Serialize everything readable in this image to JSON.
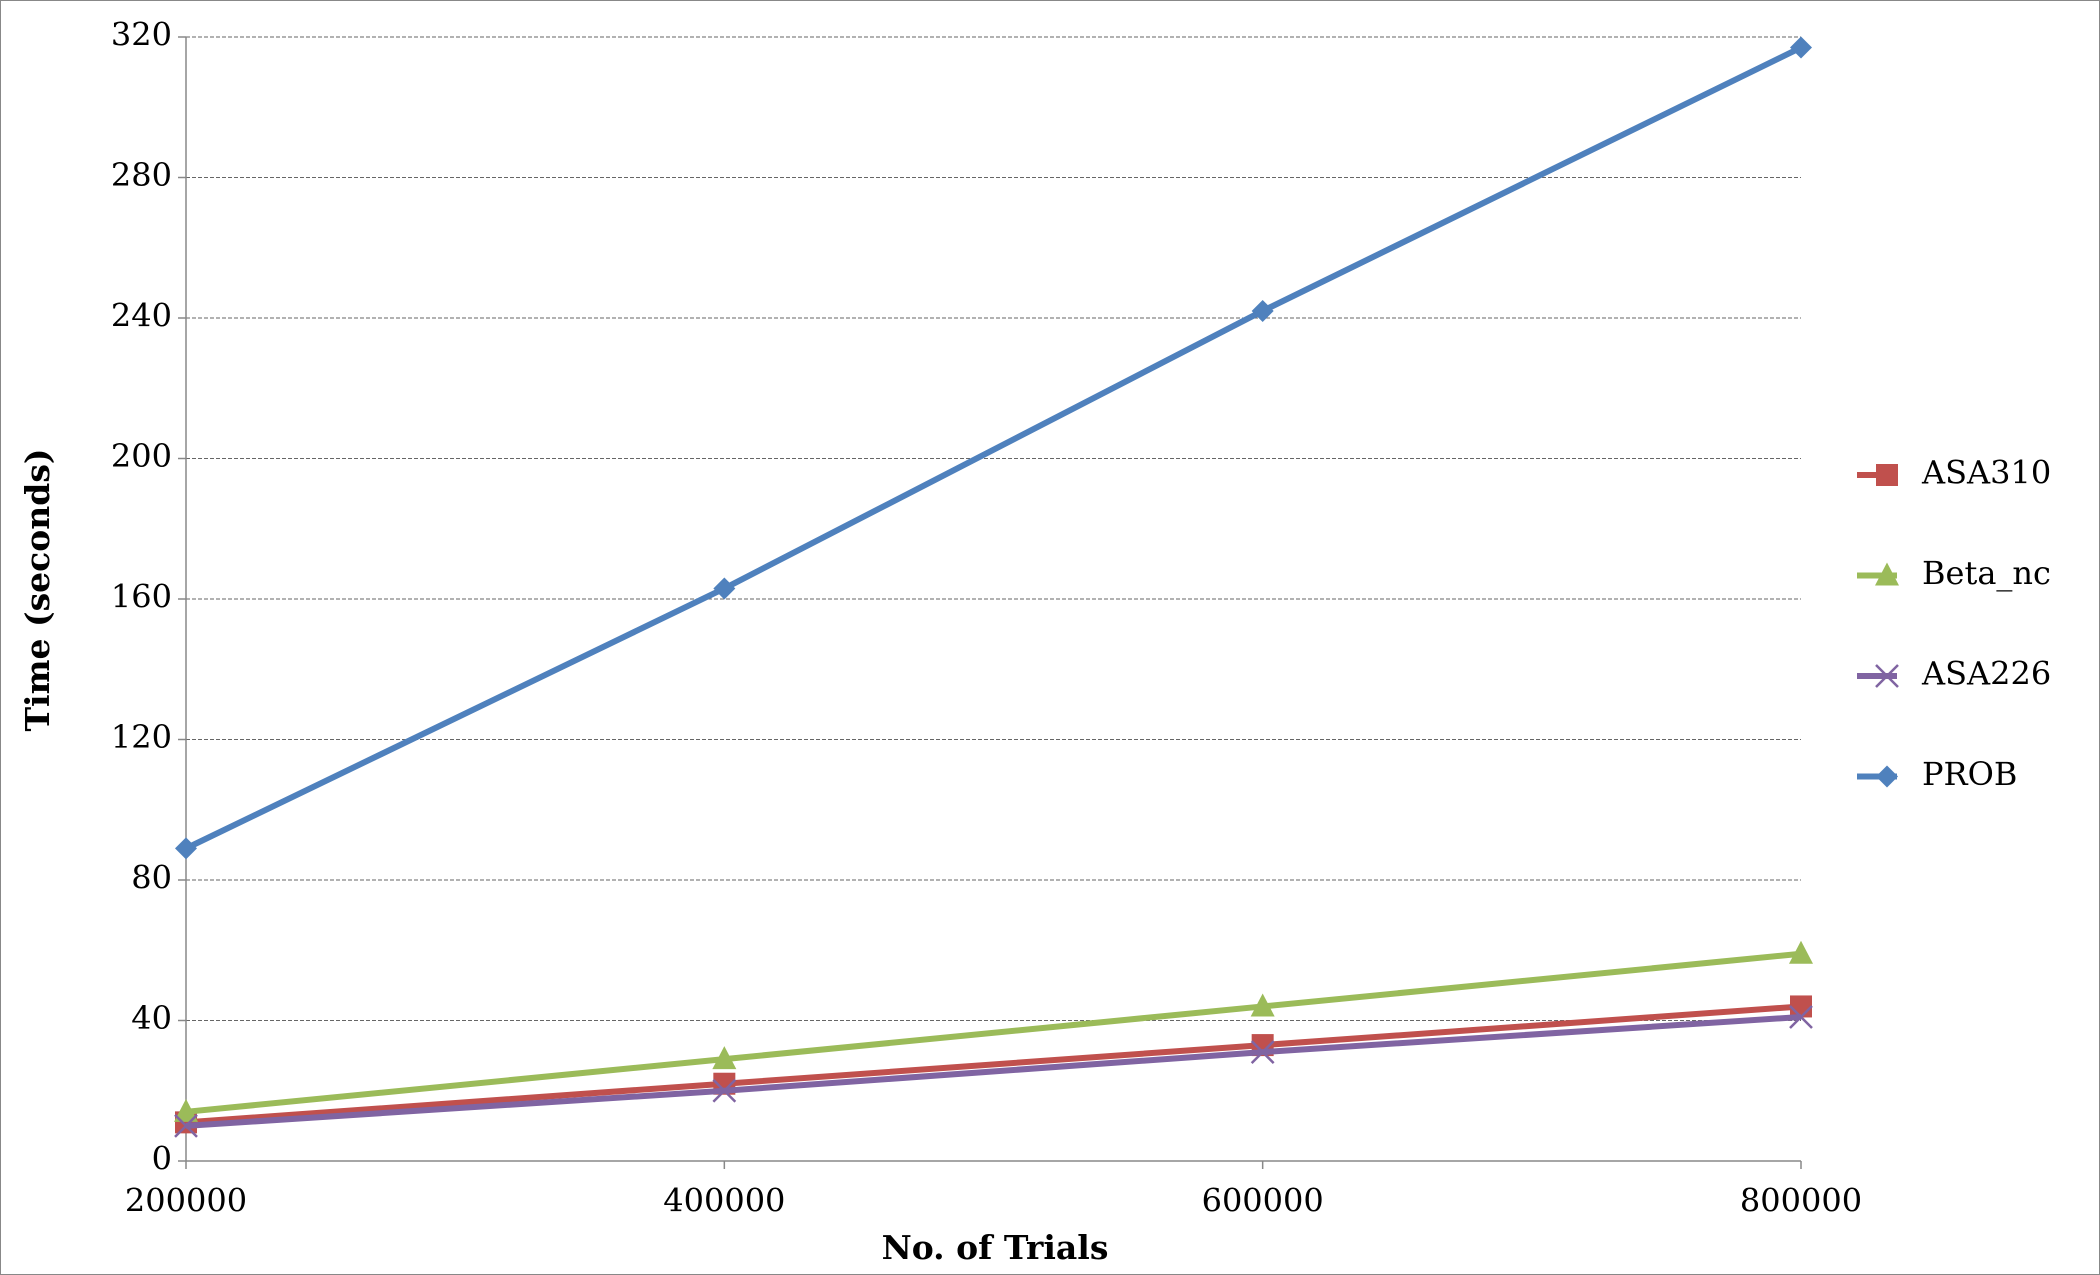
{
  "chart_data": {
    "type": "line",
    "x_label": "No. of Trials",
    "y_label": "Time (seconds)",
    "x": [
      200000,
      400000,
      600000,
      800000
    ],
    "xlim": [
      200000,
      800000
    ],
    "xticks": [
      200000,
      400000,
      600000,
      800000
    ],
    "ylim": [
      0,
      320
    ],
    "yticks": [
      0,
      40,
      80,
      120,
      160,
      200,
      240,
      280,
      320
    ],
    "grid": true,
    "legend": "right",
    "series": [
      {
        "name": "ASA310",
        "color": "#c0504d",
        "marker": "square",
        "values": [
          11,
          22,
          33,
          44
        ]
      },
      {
        "name": "Beta_nc",
        "color": "#9bbb59",
        "marker": "triangle",
        "values": [
          14,
          29,
          44,
          59
        ]
      },
      {
        "name": "ASA226",
        "color": "#8064a2",
        "marker": "x",
        "values": [
          10,
          20,
          31,
          41
        ]
      },
      {
        "name": "PROB",
        "color": "#4f81bd",
        "marker": "diamond",
        "values": [
          89,
          163,
          242,
          317
        ]
      }
    ]
  }
}
